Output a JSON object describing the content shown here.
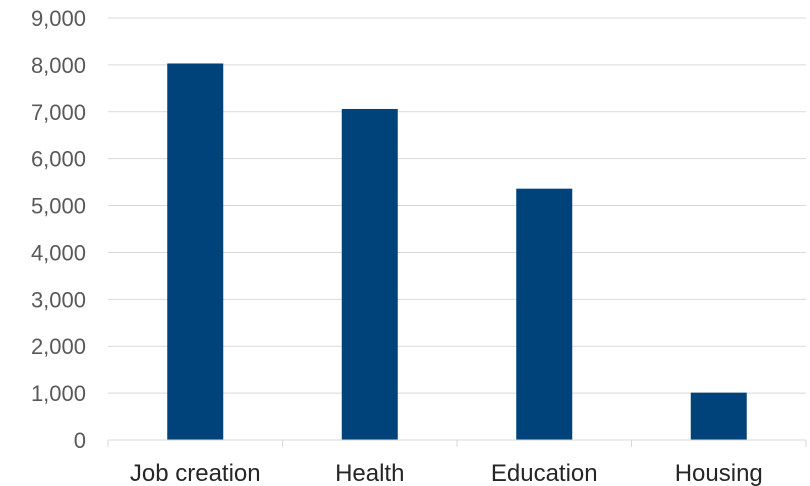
{
  "chart_data": {
    "type": "bar",
    "categories": [
      "Job creation",
      "Health",
      "Education",
      "Housing"
    ],
    "values": [
      8030,
      7060,
      5360,
      1010
    ],
    "ylim": [
      0,
      9000
    ],
    "yticks": [
      0,
      1000,
      2000,
      3000,
      4000,
      5000,
      6000,
      7000,
      8000,
      9000
    ],
    "ytick_labels": [
      "0",
      "1,000",
      "2,000",
      "3,000",
      "4,000",
      "5,000",
      "6,000",
      "7,000",
      "8,000",
      "9,000"
    ],
    "grid": true,
    "legend": "none",
    "bar_color": "#00427a"
  }
}
